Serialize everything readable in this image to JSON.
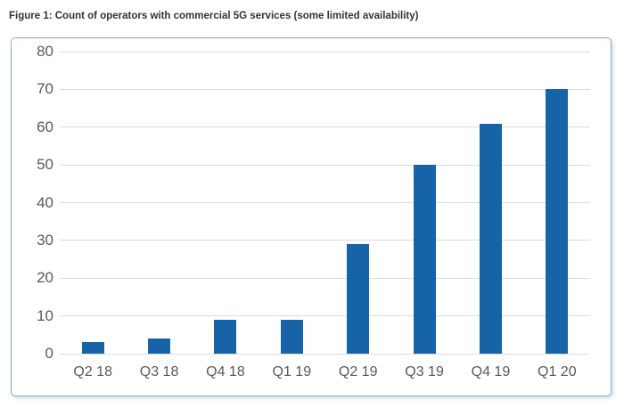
{
  "figure": {
    "title": "Figure 1: Count of operators with commercial 5G services (some limited availability)"
  },
  "colors": {
    "bar": "#1663a8",
    "panel_border": "#8aadc4",
    "gridline": "#dcdcdc",
    "axis_text": "#595959",
    "title_text": "#333333"
  },
  "chart_data": {
    "type": "bar",
    "title": "Figure 1: Count of operators with commercial 5G services (some limited availability)",
    "categories": [
      "Q2 18",
      "Q3 18",
      "Q4 18",
      "Q1 19",
      "Q2 19",
      "Q3 19",
      "Q4 19",
      "Q1 20"
    ],
    "values": [
      3,
      4,
      9,
      9,
      29,
      50,
      61,
      70
    ],
    "xlabel": "",
    "ylabel": "",
    "ylim": [
      0,
      80
    ],
    "y_ticks": [
      0,
      10,
      20,
      30,
      40,
      50,
      60,
      70,
      80
    ],
    "grid": true,
    "legend_position": "none",
    "series_name": "Operators with commercial 5G services"
  }
}
